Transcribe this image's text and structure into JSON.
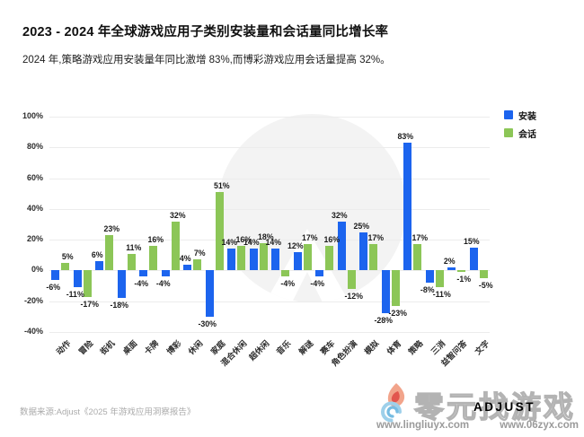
{
  "title": "2023 - 2024 年全球游戏应用子类别安装量和会话量同比增长率",
  "subtitle": "2024 年,策略游戏应用安装量年同比激增 83%,而博彩游戏应用会话量提高 32%。",
  "legend": {
    "install": "安装",
    "session": "会话"
  },
  "colors": {
    "install": "#1c64ee",
    "session": "#8cc657",
    "grid": "#ececec",
    "watermark_circle": "#f3f3f3"
  },
  "chart_data": {
    "type": "bar",
    "title": "2023 - 2024 年全球游戏应用子类别安装量和会话量同比增长率",
    "xlabel": "",
    "ylabel": "",
    "categories": [
      "动作",
      "冒险",
      "街机",
      "桌面",
      "卡牌",
      "博彩",
      "休闲",
      "家庭",
      "混合休闲",
      "超休闲",
      "音乐",
      "解谜",
      "赛车",
      "角色扮演",
      "模拟",
      "体育",
      "策略",
      "三消",
      "益智问答",
      "文字"
    ],
    "series": [
      {
        "name": "安装",
        "color": "#1c64ee",
        "values": [
          -6,
          -11,
          6,
          -18,
          -4,
          -4,
          4,
          -30,
          14,
          14,
          14,
          12,
          -4,
          32,
          25,
          -28,
          83,
          -8,
          2,
          15
        ]
      },
      {
        "name": "会话",
        "color": "#8cc657",
        "values": [
          5,
          -17,
          23,
          11,
          16,
          32,
          7,
          51,
          16,
          18,
          -4,
          17,
          16,
          -12,
          17,
          -23,
          17,
          -11,
          -1,
          -5
        ]
      }
    ],
    "ylim": [
      -40,
      100
    ],
    "yticks": [
      100,
      80,
      60,
      40,
      20,
      0,
      -20,
      -40
    ],
    "value_suffix": "%",
    "grid": true,
    "legend_position": "top-right"
  },
  "footer": {
    "source": "数据来源:Adjust《2025 年游戏应用洞察报告》"
  },
  "watermark": {
    "site_name": "零元找游戏",
    "brand": "ADJUST",
    "url1": "www.lingliuyx.com",
    "url2": "www.06zyx.com"
  }
}
